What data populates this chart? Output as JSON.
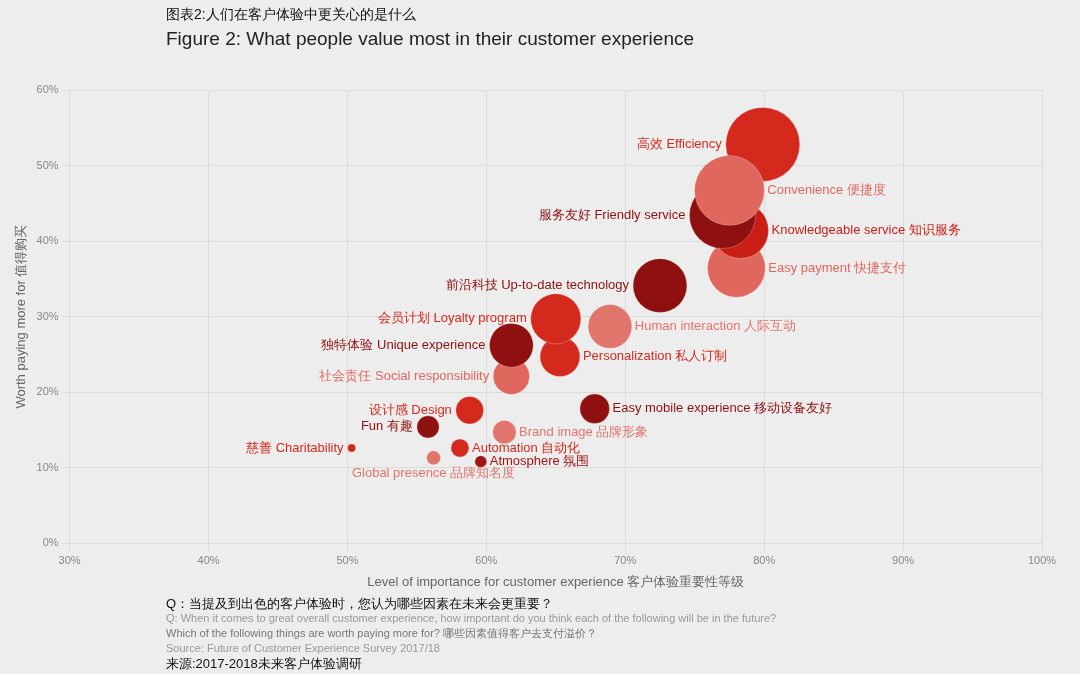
{
  "chart_data": {
    "type": "bubble",
    "title": "图表2:人们在客户体验中更关心的是什么",
    "subtitle": "Figure 2: What people value most in their customer experience",
    "xlabel": "Level of importance for customer experience 客户体验重要性等级",
    "ylabel": "Worth paying more for 值得购买",
    "xlim": [
      30,
      100
    ],
    "ylim": [
      0,
      60
    ],
    "xticks": [
      {
        "value": 30,
        "label": "30%"
      },
      {
        "value": 40,
        "label": "40%"
      },
      {
        "value": 50,
        "label": "50%"
      },
      {
        "value": 60,
        "label": "60%"
      },
      {
        "value": 70,
        "label": "70%"
      },
      {
        "value": 80,
        "label": "80%"
      },
      {
        "value": 90,
        "label": "90%"
      },
      {
        "value": 100,
        "label": "100%"
      }
    ],
    "yticks": [
      {
        "value": 0,
        "label": "0%"
      },
      {
        "value": 10,
        "label": "10%"
      },
      {
        "value": 20,
        "label": "20%"
      },
      {
        "value": 30,
        "label": "30%"
      },
      {
        "value": 40,
        "label": "40%"
      },
      {
        "value": 50,
        "label": "50%"
      },
      {
        "value": 60,
        "label": "60%"
      }
    ],
    "grid": true,
    "series": [
      {
        "name": "高效 Efficiency",
        "color": "#d42a1e",
        "x": [
          79.9
        ],
        "values": [
          52.8
        ],
        "sizes": [
          1
        ]
      },
      {
        "name": "Convenience 便捷度",
        "color": "#e0675e",
        "x": [
          77.5
        ],
        "values": [
          46.7
        ],
        "sizes": [
          0.89
        ]
      },
      {
        "name": "服务友好 Friendly service",
        "color": "#8e1010",
        "x": [
          77.0
        ],
        "values": [
          43.4
        ],
        "sizes": [
          0.8
        ]
      },
      {
        "name": "Knowledgeable service 知识服务",
        "color": "#c81e14",
        "x": [
          78.3
        ],
        "values": [
          41.4
        ],
        "sizes": [
          0.57
        ]
      },
      {
        "name": "Easy payment 快捷支付",
        "color": "#e0675e",
        "x": [
          78.0
        ],
        "values": [
          36.4
        ],
        "sizes": [
          0.61
        ]
      },
      {
        "name": "前沿科技 Up-to-date technology",
        "color": "#8e1010",
        "x": [
          72.5
        ],
        "values": [
          34.1
        ],
        "sizes": [
          0.53
        ]
      },
      {
        "name": "会员计划 Loyalty program",
        "color": "#d42a1e",
        "x": [
          65.0
        ],
        "values": [
          29.7
        ],
        "sizes": [
          0.46
        ]
      },
      {
        "name": "Human interaction 人际互动",
        "color": "#e0756c",
        "x": [
          68.9
        ],
        "values": [
          28.7
        ],
        "sizes": [
          0.35
        ]
      },
      {
        "name": "独特体验 Unique experience",
        "color": "#8e1010",
        "x": [
          61.8
        ],
        "values": [
          26.2
        ],
        "sizes": [
          0.35
        ]
      },
      {
        "name": "Personalization 私人订制",
        "color": "#d42a1e",
        "x": [
          65.3
        ],
        "values": [
          24.7
        ],
        "sizes": [
          0.29
        ]
      },
      {
        "name": "社会责任 Social responsibility",
        "color": "#e0675e",
        "x": [
          61.8
        ],
        "values": [
          22.1
        ],
        "sizes": [
          0.24
        ]
      },
      {
        "name": "设计感 Design",
        "color": "#d42a1e",
        "x": [
          58.8
        ],
        "values": [
          17.6
        ],
        "sizes": [
          0.14
        ]
      },
      {
        "name": "Easy mobile experience 移动设备友好",
        "color": "#8e1010",
        "x": [
          67.8
        ],
        "values": [
          17.8
        ],
        "sizes": [
          0.16
        ]
      },
      {
        "name": "Fun 有趣",
        "color": "#8e1010",
        "x": [
          55.8
        ],
        "values": [
          15.4
        ],
        "sizes": [
          0.09
        ]
      },
      {
        "name": "Brand image 品牌形象",
        "color": "#e0756c",
        "x": [
          61.3
        ],
        "values": [
          14.7
        ],
        "sizes": [
          0.1
        ]
      },
      {
        "name": "Automation 自动化",
        "color": "#d42a1e",
        "x": [
          58.1
        ],
        "values": [
          12.6
        ],
        "sizes": [
          0.06
        ]
      },
      {
        "name": "慈善 Charitability",
        "color": "#d42a1e",
        "x": [
          50.3
        ],
        "values": [
          12.6
        ],
        "sizes": [
          0.012
        ]
      },
      {
        "name": "Global presence 品牌知名度",
        "color": "#e0756c",
        "x": [
          56.2
        ],
        "values": [
          11.3
        ],
        "sizes": [
          0.036
        ]
      },
      {
        "name": "Atmosphere 氛围",
        "color": "#a01515",
        "x": [
          59.6
        ],
        "values": [
          10.8
        ],
        "sizes": [
          0.026
        ]
      }
    ],
    "annotations": [
      "Q：当提及到出色的客户体验时，您认为哪些因素在未来会更重要？",
      "Q: When it comes to great overall customer experience, how important do you think each of the following will be in the future?",
      "Which of the following things are worth paying more for?  哪些因素值得客户去支付溢价？",
      "Source: Future of Customer Experience Survey 2017/18",
      "来源:2017-2018未来客户体验调研"
    ]
  }
}
